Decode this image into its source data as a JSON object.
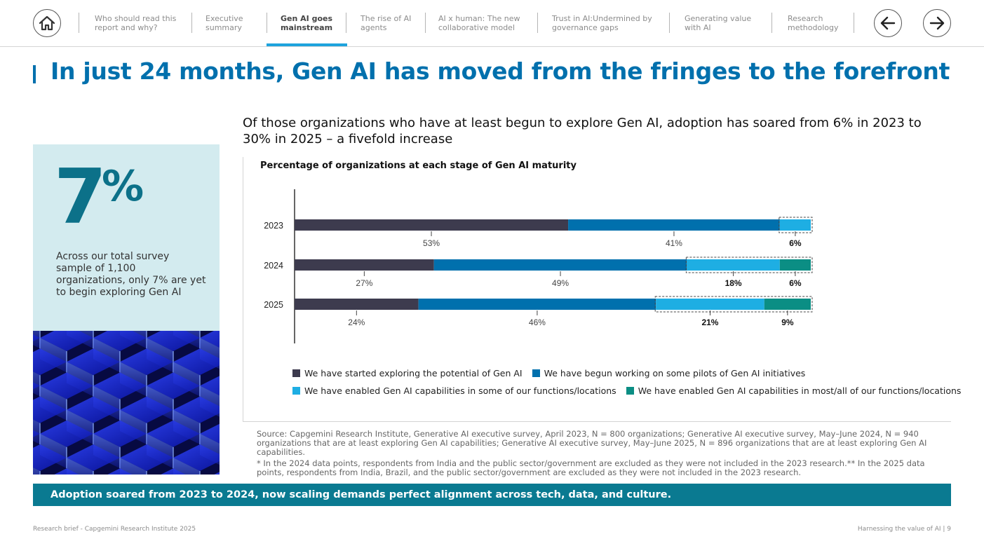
{
  "nav": {
    "items": [
      {
        "label": "Who should read this\nreport and why?"
      },
      {
        "label": "Executive\nsummary"
      },
      {
        "label": "Gen AI goes\nmainstream"
      },
      {
        "label": "The rise of AI\nagents"
      },
      {
        "label": "AI x human: The new\ncollaborative model"
      },
      {
        "label": "Trust in AI:Undermined by\ngovernance gaps"
      },
      {
        "label": "Generating value\nwith AI"
      },
      {
        "label": "Research\nmethodology"
      }
    ],
    "icons": {
      "home": "home-icon",
      "back": "arrow-left-icon",
      "forward": "arrow-right-icon"
    }
  },
  "page": {
    "title": "In just 24 months, Gen AI has moved from the fringes to the forefront"
  },
  "stat": {
    "value": "7",
    "unit": "%",
    "text": "Across our total survey sample of 1,100 organizations, only 7% are yet to begin exploring Gen AI"
  },
  "headline": "Of those organizations who have at least begun to explore Gen AI,  adoption has soared from 6% in 2023 to 30% in 2025 – a fivefold increase",
  "chart_data": {
    "type": "bar",
    "orientation": "horizontal",
    "stacked": true,
    "title": "Percentage of organizations at each stage of Gen AI maturity",
    "categories": [
      "2023",
      "2024",
      "2025"
    ],
    "series": [
      {
        "name": "We have started exploring the potential of Gen AI",
        "values": [
          53,
          27,
          24
        ],
        "labels": [
          "53%",
          "27%",
          "24%"
        ],
        "color": "#3d3b4e"
      },
      {
        "name": "We have begun working on some pilots of Gen AI initiatives",
        "values": [
          41,
          49,
          46
        ],
        "labels": [
          "41%",
          "49%",
          "46%"
        ],
        "color": "#0070ad"
      },
      {
        "name": "We have enabled Gen AI capabilities in some of our functions/locations",
        "values": [
          6,
          18,
          21
        ],
        "labels": [
          "6%",
          "18%",
          "21%"
        ],
        "color": "#1eaee3"
      },
      {
        "name": "We have enabled Gen AI capabilities in most/all of our functions/locations",
        "values": [
          0,
          6,
          9
        ],
        "labels": [
          "",
          "6%",
          "9%"
        ],
        "color": "#0b8e84"
      }
    ],
    "highlight": "enabled stages outlined with dashed box, labels bold",
    "xlim": [
      0,
      100
    ],
    "legend_position": "bottom"
  },
  "source": {
    "line1": "Source: Capgemini Research Institute, Generative AI executive survey, April 2023, N = 800 organizations; Generative AI executive survey, May–June 2024, N = 940 organizations that are at least exploring Gen AI capabilities; Generative AI executive survey, May–June 2025, N = 896 organizations that are at least exploring Gen AI capabilities.",
    "line2": "* In the 2024 data points, respondents from India and the public sector/government are excluded as they were not included in the 2023 research.** In the 2025 data points, respondents from India, Brazil, and the public sector/government are excluded as they were not included in the 2023 research."
  },
  "banner": "Adoption soared from 2023 to 2024, now scaling demands perfect alignment across tech, data, and culture.",
  "footer": {
    "left": "Research brief - Capgemini Research Institute 2025",
    "right": "Harnessing the value of AI  |   9"
  }
}
